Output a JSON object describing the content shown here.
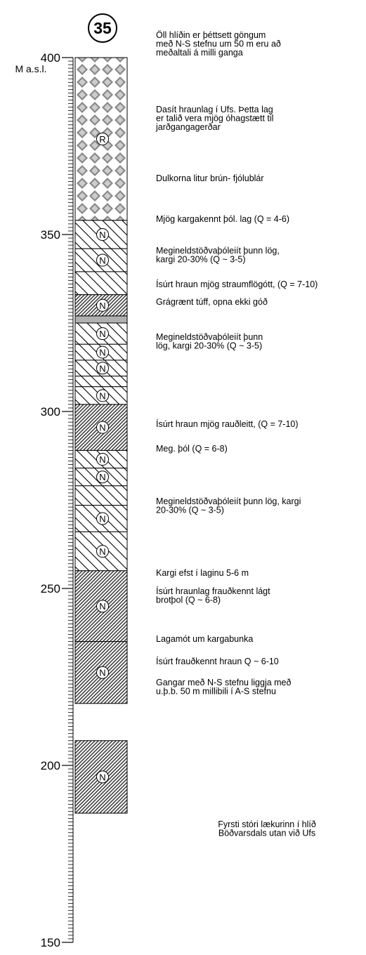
{
  "column": {
    "number": "35",
    "axis": {
      "label": "M a.s.l.",
      "range": [
        150,
        400
      ],
      "ticks": [
        400,
        350,
        300,
        250,
        200,
        150
      ],
      "minor_step": 1
    },
    "layers": [
      {
        "top": 400,
        "bottom": 354,
        "pattern": "checker",
        "symbol": "R"
      },
      {
        "top": 354,
        "bottom": 346,
        "pattern": "sparse-hatch",
        "symbol": "N"
      },
      {
        "top": 346,
        "bottom": 339.5,
        "pattern": "sparse-hatch",
        "symbol": "N"
      },
      {
        "top": 339.5,
        "bottom": 333,
        "pattern": "sparse-hatch",
        "symbol": null
      },
      {
        "top": 333,
        "bottom": 327,
        "pattern": "dense-hatch",
        "symbol": "N"
      },
      {
        "top": 327,
        "bottom": 325,
        "pattern": "gray",
        "symbol": null
      },
      {
        "top": 325,
        "bottom": 319,
        "pattern": "sparse-hatch",
        "symbol": "N"
      },
      {
        "top": 319,
        "bottom": 314.5,
        "pattern": "sparse-hatch",
        "symbol": "N"
      },
      {
        "top": 314.5,
        "bottom": 310,
        "pattern": "sparse-hatch",
        "symbol": "N"
      },
      {
        "top": 310,
        "bottom": 307,
        "pattern": "sparse-hatch",
        "symbol": null
      },
      {
        "top": 307,
        "bottom": 302,
        "pattern": "sparse-hatch",
        "symbol": "N"
      },
      {
        "top": 302,
        "bottom": 289,
        "pattern": "dense-hatch",
        "symbol": "N"
      },
      {
        "top": 289,
        "bottom": 284,
        "pattern": "sparse-hatch",
        "symbol": "N"
      },
      {
        "top": 284,
        "bottom": 279,
        "pattern": "sparse-hatch",
        "symbol": "N"
      },
      {
        "top": 279,
        "bottom": 273.5,
        "pattern": "sparse-hatch",
        "symbol": null
      },
      {
        "top": 273.5,
        "bottom": 266,
        "pattern": "sparse-hatch",
        "symbol": "N"
      },
      {
        "top": 266,
        "bottom": 255,
        "pattern": "sparse-hatch",
        "symbol": "N"
      },
      {
        "top": 255,
        "bottom": 235,
        "pattern": "dense-hatch",
        "symbol": "N"
      },
      {
        "top": 235,
        "bottom": 217.5,
        "pattern": "dense-hatch",
        "symbol": "N"
      },
      {
        "top": 207,
        "bottom": 186.5,
        "pattern": "dense-hatch",
        "symbol": "N"
      }
    ],
    "annotations": [
      {
        "lines": [
          "Öll hlíðin er þéttsett göngum",
          "með N-S stefnu um 50 m eru að",
          "meðaltali á milli ganga"
        ]
      },
      {
        "lines": [
          "Dasít hraunlag í Ufs.  Þetta lag",
          "er talið vera mjög óhagstætt til",
          "jarðgangagerðar"
        ]
      },
      {
        "lines": [
          "Dulkorna litur brún- fjólublár"
        ]
      },
      {
        "lines": [
          "Mjög kargakennt þól. lag (Q = 4-6)"
        ]
      },
      {
        "lines": [
          "Megineldstöðvaþóleiít þunn lög,",
          "kargi 20-30% (Q ~ 3-5)"
        ]
      },
      {
        "lines": [
          "Ísúrt hraun  mjög straumflögótt, (Q = 7-10)"
        ]
      },
      {
        "lines": [
          "Grágrænt túff, opna ekki góð"
        ]
      },
      {
        "lines": [
          "Megineldstöðvaþóleiít þunn",
          "lög, kargi 20-30% (Q ~ 3-5)"
        ]
      },
      {
        "lines": [
          "Ísúrt hraun  mjög rauðleitt, (Q = 7-10)"
        ]
      },
      {
        "lines": [
          "Meg. þól (Q = 6-8)"
        ]
      },
      {
        "lines": [
          "Megineldstöðvaþóleiít þunn lög, kargi",
          "20-30% (Q ~ 3-5)"
        ]
      },
      {
        "lines": [
          "Kargi efst í laginu 5-6 m"
        ]
      },
      {
        "lines": [
          "Ísúrt hraunlag frauðkennt lágt",
          "brotþol (Q ~ 6-8)"
        ]
      },
      {
        "lines": [
          "Lagamót um kargabunka"
        ]
      },
      {
        "lines": [
          "Ísúrt frauðkennt hraun Q ~ 6-10"
        ]
      },
      {
        "lines": [
          "Gangar með N-S stefnu liggja með",
          "u.þ.b. 50 m millibili í A-S stefnu"
        ]
      },
      {
        "lines": [
          "Fyrsti stóri lækurinn í hlíð",
          "Böðvarsdals utan við Ufs"
        ]
      }
    ]
  }
}
